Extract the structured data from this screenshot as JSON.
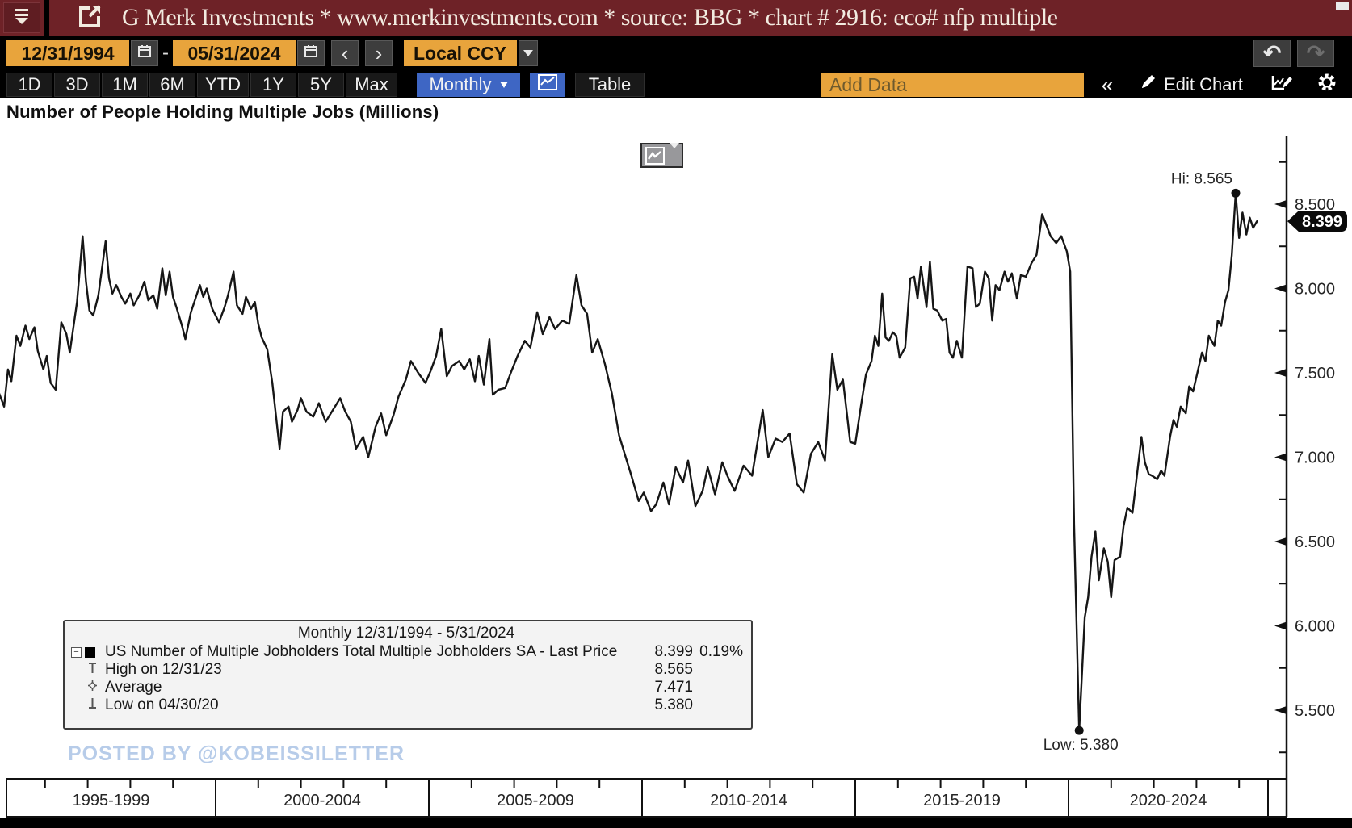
{
  "titlebar": {
    "title": "G Merk Investments * www.merkinvestments.com * source: BBG * chart # 2916: eco# nfp multiple"
  },
  "dates": {
    "start": "12/31/1994",
    "end": "05/31/2024",
    "separator": "-",
    "prev": "‹",
    "next": "›",
    "currency": "Local CCY",
    "undo": "↶",
    "redo": "↷"
  },
  "ranges": {
    "items": [
      "1D",
      "3D",
      "1M",
      "6M",
      "YTD",
      "1Y",
      "5Y",
      "Max"
    ],
    "interval": "Monthly",
    "table": "Table",
    "add_data": "Add Data",
    "collapse": "«",
    "edit_chart": "Edit Chart"
  },
  "chart": {
    "heading": "Number of People Holding Multiple Jobs (Millions)",
    "watermark": "POSTED BY @KOBEISSILETTER"
  },
  "legend": {
    "title": "Monthly 12/31/1994 - 5/31/2024",
    "rows": [
      {
        "label": "US Number of Multiple Jobholders Total Multiple Jobholders SA - Last Price",
        "value": "8.399",
        "pct": "0.19%"
      },
      {
        "label": "High on 12/31/23",
        "value": "8.565",
        "pct": ""
      },
      {
        "label": "Average",
        "value": "7.471",
        "pct": ""
      },
      {
        "label": "Low on 04/30/20",
        "value": "5.380",
        "pct": ""
      }
    ]
  },
  "chart_data": {
    "type": "line",
    "title": "Number of People Holding Multiple Jobs (Millions)",
    "series_name": "US Number of Multiple Jobholders Total Multiple Jobholders SA",
    "units": "Millions",
    "x_range": [
      1994.92,
      2024.42
    ],
    "ylim": [
      5.25,
      8.75
    ],
    "grid": false,
    "legend_position": "bottom-left",
    "line_color": "#161616",
    "y_ticks": [
      {
        "v": 8.5,
        "label": "8.500"
      },
      {
        "v": 8.0,
        "label": "8.000"
      },
      {
        "v": 7.5,
        "label": "7.500"
      },
      {
        "v": 7.0,
        "label": "7.000"
      },
      {
        "v": 6.5,
        "label": "6.500"
      },
      {
        "v": 6.0,
        "label": "6.000"
      },
      {
        "v": 5.5,
        "label": "5.500"
      }
    ],
    "y_minor": [
      8.75,
      8.25,
      7.75,
      7.25,
      6.75,
      6.25,
      5.75,
      5.25
    ],
    "x_spans": [
      {
        "label": "1995-1999",
        "start": 1995,
        "end": 2000
      },
      {
        "label": "2000-2004",
        "start": 2000,
        "end": 2005
      },
      {
        "label": "2005-2009",
        "start": 2005,
        "end": 2010
      },
      {
        "label": "2010-2014",
        "start": 2010,
        "end": 2015
      },
      {
        "label": "2015-2019",
        "start": 2015,
        "end": 2020
      },
      {
        "label": "2020-2024",
        "start": 2020,
        "end": 2025
      }
    ],
    "annotations": {
      "hi": {
        "year": 2023.92,
        "value": 8.565,
        "label": "Hi: 8.565"
      },
      "low": {
        "year": 2020.25,
        "value": 5.38,
        "label": "Low: 5.380"
      },
      "last": {
        "year": 2024.42,
        "value": 8.399,
        "label": "8.399"
      }
    },
    "points": [
      [
        1994.92,
        7.38
      ],
      [
        1995.04,
        7.3
      ],
      [
        1995.13,
        7.52
      ],
      [
        1995.21,
        7.45
      ],
      [
        1995.33,
        7.72
      ],
      [
        1995.42,
        7.66
      ],
      [
        1995.54,
        7.78
      ],
      [
        1995.63,
        7.7
      ],
      [
        1995.75,
        7.77
      ],
      [
        1995.83,
        7.63
      ],
      [
        1995.96,
        7.52
      ],
      [
        1996.04,
        7.6
      ],
      [
        1996.13,
        7.44
      ],
      [
        1996.25,
        7.4
      ],
      [
        1996.38,
        7.8
      ],
      [
        1996.5,
        7.73
      ],
      [
        1996.58,
        7.62
      ],
      [
        1996.67,
        7.78
      ],
      [
        1996.75,
        7.92
      ],
      [
        1996.88,
        8.31
      ],
      [
        1996.96,
        8.04
      ],
      [
        1997.04,
        7.87
      ],
      [
        1997.13,
        7.84
      ],
      [
        1997.25,
        7.96
      ],
      [
        1997.42,
        8.28
      ],
      [
        1997.5,
        8.06
      ],
      [
        1997.58,
        7.97
      ],
      [
        1997.67,
        8.02
      ],
      [
        1997.79,
        7.95
      ],
      [
        1997.88,
        7.91
      ],
      [
        1998.0,
        7.97
      ],
      [
        1998.08,
        7.9
      ],
      [
        1998.21,
        7.96
      ],
      [
        1998.33,
        8.04
      ],
      [
        1998.42,
        7.93
      ],
      [
        1998.54,
        7.96
      ],
      [
        1998.63,
        7.88
      ],
      [
        1998.75,
        8.12
      ],
      [
        1998.83,
        7.96
      ],
      [
        1998.92,
        8.1
      ],
      [
        1999.0,
        7.95
      ],
      [
        1999.08,
        7.89
      ],
      [
        1999.21,
        7.78
      ],
      [
        1999.29,
        7.7
      ],
      [
        1999.42,
        7.86
      ],
      [
        1999.5,
        7.92
      ],
      [
        1999.63,
        8.02
      ],
      [
        1999.71,
        7.95
      ],
      [
        1999.79,
        8.0
      ],
      [
        1999.92,
        7.88
      ],
      [
        2000.0,
        7.84
      ],
      [
        2000.08,
        7.8
      ],
      [
        2000.21,
        7.89
      ],
      [
        2000.29,
        7.96
      ],
      [
        2000.42,
        8.1
      ],
      [
        2000.5,
        7.9
      ],
      [
        2000.63,
        7.85
      ],
      [
        2000.71,
        7.95
      ],
      [
        2000.83,
        7.88
      ],
      [
        2000.92,
        7.92
      ],
      [
        2001.0,
        7.79
      ],
      [
        2001.08,
        7.71
      ],
      [
        2001.21,
        7.64
      ],
      [
        2001.33,
        7.44
      ],
      [
        2001.5,
        7.05
      ],
      [
        2001.58,
        7.27
      ],
      [
        2001.71,
        7.3
      ],
      [
        2001.79,
        7.21
      ],
      [
        2001.92,
        7.28
      ],
      [
        2002.0,
        7.35
      ],
      [
        2002.13,
        7.27
      ],
      [
        2002.29,
        7.24
      ],
      [
        2002.42,
        7.32
      ],
      [
        2002.58,
        7.21
      ],
      [
        2002.75,
        7.28
      ],
      [
        2002.92,
        7.35
      ],
      [
        2003.04,
        7.27
      ],
      [
        2003.17,
        7.21
      ],
      [
        2003.29,
        7.05
      ],
      [
        2003.46,
        7.12
      ],
      [
        2003.58,
        7.0
      ],
      [
        2003.75,
        7.18
      ],
      [
        2003.88,
        7.26
      ],
      [
        2004.0,
        7.13
      ],
      [
        2004.17,
        7.25
      ],
      [
        2004.29,
        7.36
      ],
      [
        2004.46,
        7.46
      ],
      [
        2004.58,
        7.57
      ],
      [
        2004.75,
        7.5
      ],
      [
        2004.92,
        7.44
      ],
      [
        2005.04,
        7.51
      ],
      [
        2005.17,
        7.6
      ],
      [
        2005.29,
        7.76
      ],
      [
        2005.42,
        7.48
      ],
      [
        2005.54,
        7.54
      ],
      [
        2005.71,
        7.57
      ],
      [
        2005.83,
        7.52
      ],
      [
        2005.96,
        7.58
      ],
      [
        2006.08,
        7.45
      ],
      [
        2006.17,
        7.6
      ],
      [
        2006.29,
        7.43
      ],
      [
        2006.42,
        7.7
      ],
      [
        2006.5,
        7.37
      ],
      [
        2006.63,
        7.4
      ],
      [
        2006.79,
        7.41
      ],
      [
        2006.92,
        7.5
      ],
      [
        2007.08,
        7.6
      ],
      [
        2007.25,
        7.69
      ],
      [
        2007.38,
        7.65
      ],
      [
        2007.54,
        7.86
      ],
      [
        2007.67,
        7.73
      ],
      [
        2007.83,
        7.83
      ],
      [
        2007.96,
        7.76
      ],
      [
        2008.13,
        7.81
      ],
      [
        2008.29,
        7.79
      ],
      [
        2008.46,
        8.08
      ],
      [
        2008.58,
        7.9
      ],
      [
        2008.71,
        7.85
      ],
      [
        2008.83,
        7.62
      ],
      [
        2008.96,
        7.7
      ],
      [
        2009.13,
        7.55
      ],
      [
        2009.29,
        7.38
      ],
      [
        2009.46,
        7.13
      ],
      [
        2009.58,
        7.03
      ],
      [
        2009.75,
        6.89
      ],
      [
        2009.92,
        6.74
      ],
      [
        2010.04,
        6.79
      ],
      [
        2010.21,
        6.68
      ],
      [
        2010.33,
        6.72
      ],
      [
        2010.5,
        6.85
      ],
      [
        2010.63,
        6.72
      ],
      [
        2010.79,
        6.94
      ],
      [
        2010.96,
        6.85
      ],
      [
        2011.08,
        6.98
      ],
      [
        2011.25,
        6.71
      ],
      [
        2011.42,
        6.8
      ],
      [
        2011.54,
        6.94
      ],
      [
        2011.71,
        6.78
      ],
      [
        2011.88,
        6.97
      ],
      [
        2012.0,
        6.89
      ],
      [
        2012.17,
        6.8
      ],
      [
        2012.38,
        6.95
      ],
      [
        2012.58,
        6.89
      ],
      [
        2012.83,
        7.28
      ],
      [
        2012.96,
        7.0
      ],
      [
        2013.13,
        7.11
      ],
      [
        2013.29,
        7.09
      ],
      [
        2013.46,
        7.14
      ],
      [
        2013.63,
        6.84
      ],
      [
        2013.79,
        6.79
      ],
      [
        2013.96,
        7.02
      ],
      [
        2014.13,
        7.09
      ],
      [
        2014.29,
        6.98
      ],
      [
        2014.46,
        7.61
      ],
      [
        2014.58,
        7.4
      ],
      [
        2014.71,
        7.46
      ],
      [
        2014.88,
        7.09
      ],
      [
        2015.0,
        7.08
      ],
      [
        2015.13,
        7.3
      ],
      [
        2015.25,
        7.49
      ],
      [
        2015.38,
        7.57
      ],
      [
        2015.46,
        7.72
      ],
      [
        2015.54,
        7.66
      ],
      [
        2015.63,
        7.97
      ],
      [
        2015.71,
        7.71
      ],
      [
        2015.79,
        7.69
      ],
      [
        2015.88,
        7.74
      ],
      [
        2015.96,
        7.72
      ],
      [
        2016.04,
        7.59
      ],
      [
        2016.17,
        7.65
      ],
      [
        2016.29,
        8.06
      ],
      [
        2016.38,
        8.07
      ],
      [
        2016.46,
        7.94
      ],
      [
        2016.54,
        8.13
      ],
      [
        2016.67,
        7.89
      ],
      [
        2016.75,
        8.16
      ],
      [
        2016.83,
        7.88
      ],
      [
        2016.92,
        7.87
      ],
      [
        2017.04,
        7.81
      ],
      [
        2017.13,
        7.82
      ],
      [
        2017.21,
        7.62
      ],
      [
        2017.29,
        7.59
      ],
      [
        2017.38,
        7.69
      ],
      [
        2017.5,
        7.59
      ],
      [
        2017.63,
        8.13
      ],
      [
        2017.75,
        8.12
      ],
      [
        2017.83,
        7.89
      ],
      [
        2017.92,
        7.91
      ],
      [
        2018.04,
        8.1
      ],
      [
        2018.13,
        8.06
      ],
      [
        2018.21,
        7.81
      ],
      [
        2018.29,
        8.02
      ],
      [
        2018.38,
        7.99
      ],
      [
        2018.5,
        8.1
      ],
      [
        2018.58,
        8.04
      ],
      [
        2018.67,
        8.09
      ],
      [
        2018.79,
        7.94
      ],
      [
        2018.88,
        8.08
      ],
      [
        2019.0,
        8.07
      ],
      [
        2019.13,
        8.15
      ],
      [
        2019.25,
        8.2
      ],
      [
        2019.38,
        8.44
      ],
      [
        2019.46,
        8.39
      ],
      [
        2019.58,
        8.31
      ],
      [
        2019.71,
        8.27
      ],
      [
        2019.83,
        8.31
      ],
      [
        2019.96,
        8.22
      ],
      [
        2020.04,
        8.1
      ],
      [
        2020.13,
        6.6
      ],
      [
        2020.25,
        5.38
      ],
      [
        2020.38,
        6.05
      ],
      [
        2020.46,
        6.17
      ],
      [
        2020.54,
        6.41
      ],
      [
        2020.63,
        6.56
      ],
      [
        2020.71,
        6.27
      ],
      [
        2020.83,
        6.46
      ],
      [
        2020.92,
        6.38
      ],
      [
        2021.0,
        6.17
      ],
      [
        2021.08,
        6.39
      ],
      [
        2021.21,
        6.41
      ],
      [
        2021.29,
        6.59
      ],
      [
        2021.38,
        6.7
      ],
      [
        2021.5,
        6.67
      ],
      [
        2021.58,
        6.84
      ],
      [
        2021.71,
        7.12
      ],
      [
        2021.79,
        6.97
      ],
      [
        2021.88,
        6.9
      ],
      [
        2021.96,
        6.89
      ],
      [
        2022.08,
        6.87
      ],
      [
        2022.17,
        6.92
      ],
      [
        2022.25,
        6.89
      ],
      [
        2022.38,
        7.12
      ],
      [
        2022.46,
        7.22
      ],
      [
        2022.54,
        7.18
      ],
      [
        2022.63,
        7.3
      ],
      [
        2022.75,
        7.26
      ],
      [
        2022.83,
        7.42
      ],
      [
        2022.92,
        7.39
      ],
      [
        2023.04,
        7.52
      ],
      [
        2023.13,
        7.62
      ],
      [
        2023.21,
        7.57
      ],
      [
        2023.29,
        7.72
      ],
      [
        2023.42,
        7.66
      ],
      [
        2023.5,
        7.81
      ],
      [
        2023.58,
        7.78
      ],
      [
        2023.67,
        7.92
      ],
      [
        2023.75,
        7.99
      ],
      [
        2023.83,
        8.2
      ],
      [
        2023.92,
        8.565
      ],
      [
        2024.0,
        8.3
      ],
      [
        2024.08,
        8.45
      ],
      [
        2024.17,
        8.32
      ],
      [
        2024.25,
        8.42
      ],
      [
        2024.33,
        8.36
      ],
      [
        2024.42,
        8.399
      ]
    ]
  }
}
